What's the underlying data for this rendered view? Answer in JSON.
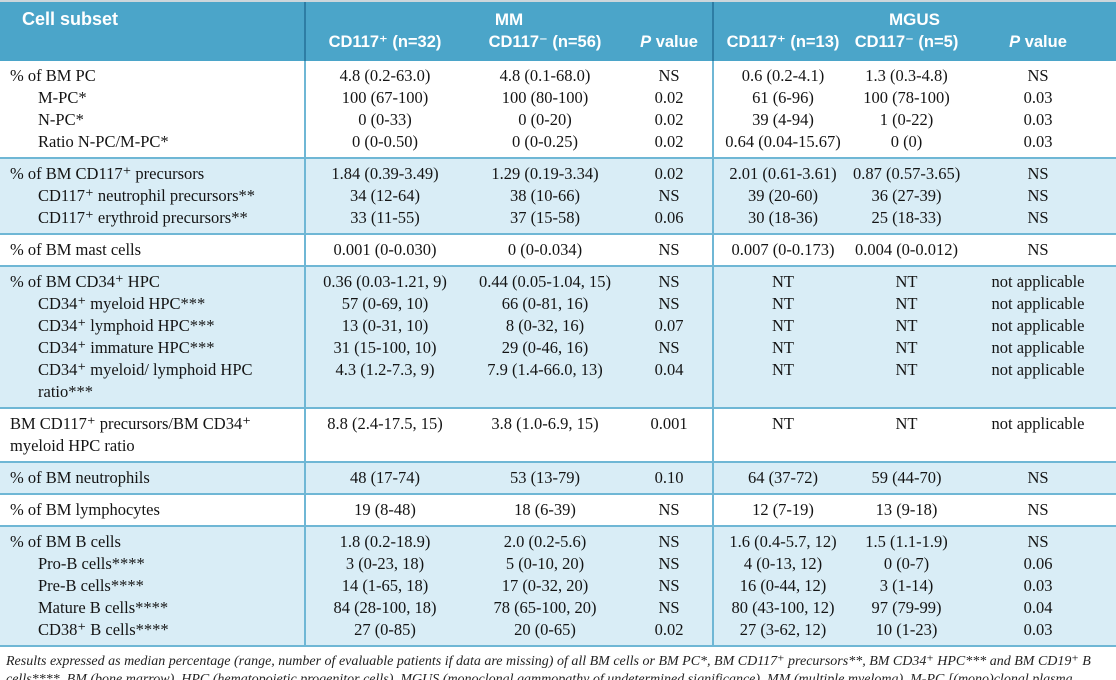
{
  "colors": {
    "header_bg": "#4ba5c9",
    "row_alt_bg": "#d9edf6",
    "body_separator": "#6fb7d5",
    "header_separator": "#2e7da4"
  },
  "header": {
    "cell_subset": "Cell subset",
    "groups": [
      {
        "label": "MM",
        "columns": [
          "CD117⁺ (n=32)",
          "CD117⁻ (n=56)",
          "P value"
        ]
      },
      {
        "label": "MGUS",
        "columns": [
          "CD117⁺ (n=13)",
          "CD117⁻ (n=5)",
          "P value"
        ]
      }
    ]
  },
  "groups": [
    {
      "bg": "white",
      "rows": [
        {
          "label": "% of BM PC",
          "indent": false,
          "values": [
            "4.8 (0.2-63.0)",
            "4.8 (0.1-68.0)",
            "NS",
            "0.6 (0.2-4.1)",
            "1.3 (0.3-4.8)",
            "NS"
          ]
        },
        {
          "label": "M-PC*",
          "indent": true,
          "values": [
            "100 (67-100)",
            "100 (80-100)",
            "0.02",
            "61 (6-96)",
            "100 (78-100)",
            "0.03"
          ]
        },
        {
          "label": "N-PC*",
          "indent": true,
          "values": [
            "0 (0-33)",
            "0 (0-20)",
            "0.02",
            "39 (4-94)",
            "1 (0-22)",
            "0.03"
          ]
        },
        {
          "label": "Ratio N-PC/M-PC*",
          "indent": true,
          "values": [
            "0 (0-0.50)",
            "0 (0-0.25)",
            "0.02",
            "0.64 (0.04-15.67)",
            "0 (0)",
            "0.03"
          ]
        }
      ]
    },
    {
      "bg": "blue",
      "rows": [
        {
          "label": "% of BM CD117⁺ precursors",
          "indent": false,
          "values": [
            "1.84 (0.39-3.49)",
            "1.29 (0.19-3.34)",
            "0.02",
            "2.01 (0.61-3.61)",
            "0.87 (0.57-3.65)",
            "NS"
          ]
        },
        {
          "label": "CD117⁺ neutrophil precursors**",
          "indent": true,
          "values": [
            "34 (12-64)",
            "38 (10-66)",
            "NS",
            "39 (20-60)",
            "36 (27-39)",
            "NS"
          ]
        },
        {
          "label": "CD117⁺ erythroid precursors**",
          "indent": true,
          "values": [
            "33 (11-55)",
            "37 (15-58)",
            "0.06",
            "30 (18-36)",
            "25 (18-33)",
            "NS"
          ]
        }
      ]
    },
    {
      "bg": "white",
      "rows": [
        {
          "label": "% of BM mast cells",
          "indent": false,
          "values": [
            "0.001 (0-0.030)",
            "0 (0-0.034)",
            "NS",
            "0.007 (0-0.173)",
            "0.004 (0-0.012)",
            "NS"
          ]
        }
      ]
    },
    {
      "bg": "blue",
      "rows": [
        {
          "label": "% of BM CD34⁺ HPC",
          "indent": false,
          "values": [
            "0.36 (0.03-1.21, 9)",
            "0.44 (0.05-1.04, 15)",
            "NS",
            "NT",
            "NT",
            "not applicable"
          ]
        },
        {
          "label": "CD34⁺ myeloid HPC***",
          "indent": true,
          "values": [
            "57 (0-69, 10)",
            "66 (0-81, 16)",
            "NS",
            "NT",
            "NT",
            "not applicable"
          ]
        },
        {
          "label": "CD34⁺ lymphoid HPC***",
          "indent": true,
          "values": [
            "13 (0-31, 10)",
            "8 (0-32, 16)",
            "0.07",
            "NT",
            "NT",
            "not applicable"
          ]
        },
        {
          "label": "CD34⁺ immature HPC***",
          "indent": true,
          "values": [
            "31 (15-100, 10)",
            "29 (0-46, 16)",
            "NS",
            "NT",
            "NT",
            "not applicable"
          ]
        },
        {
          "label": "CD34⁺ myeloid/ lymphoid HPC ratio***",
          "indent": true,
          "values": [
            "4.3 (1.2-7.3, 9)",
            "7.9 (1.4-66.0, 13)",
            "0.04",
            "NT",
            "NT",
            "not applicable"
          ]
        }
      ]
    },
    {
      "bg": "white",
      "rows": [
        {
          "label": "BM CD117⁺ precursors/BM CD34⁺",
          "label_line2": "myeloid HPC ratio",
          "indent": false,
          "values": [
            "8.8 (2.4-17.5, 15)",
            "3.8 (1.0-6.9, 15)",
            "0.001",
            "NT",
            "NT",
            "not applicable"
          ]
        }
      ]
    },
    {
      "bg": "blue",
      "rows": [
        {
          "label": "% of BM neutrophils",
          "indent": false,
          "values": [
            "48 (17-74)",
            "53 (13-79)",
            "0.10",
            "64 (37-72)",
            "59 (44-70)",
            "NS"
          ]
        }
      ]
    },
    {
      "bg": "white",
      "rows": [
        {
          "label": "% of BM lymphocytes",
          "indent": false,
          "values": [
            "19 (8-48)",
            "18 (6-39)",
            "NS",
            "12 (7-19)",
            "13 (9-18)",
            "NS"
          ]
        }
      ]
    },
    {
      "bg": "blue",
      "rows": [
        {
          "label": "% of BM B cells",
          "indent": false,
          "values": [
            "1.8 (0.2-18.9)",
            "2.0 (0.2-5.6)",
            "NS",
            "1.6 (0.4-5.7, 12)",
            "1.5 (1.1-1.9)",
            "NS"
          ]
        },
        {
          "label": "Pro-B cells****",
          "indent": true,
          "values": [
            "3 (0-23, 18)",
            "5 (0-10, 20)",
            "NS",
            "4 (0-13, 12)",
            "0 (0-7)",
            "0.06"
          ]
        },
        {
          "label": "Pre-B cells****",
          "indent": true,
          "values": [
            "14 (1-65, 18)",
            "17 (0-32, 20)",
            "NS",
            "16 (0-44, 12)",
            "3 (1-14)",
            "0.03"
          ]
        },
        {
          "label": "Mature B cells****",
          "indent": true,
          "values": [
            "84 (28-100, 18)",
            "78 (65-100, 20)",
            "NS",
            "80 (43-100, 12)",
            "97 (79-99)",
            "0.04"
          ]
        },
        {
          "label": "CD38⁺ B cells****",
          "indent": true,
          "values": [
            "27 (0-85)",
            "20 (0-65)",
            "0.02",
            "27 (3-62, 12)",
            "10 (1-23)",
            "0.03"
          ]
        }
      ]
    }
  ],
  "footnote": "Results expressed as median percentage (range, number of evaluable patients if data are missing) of all BM cells or BM PC*, BM CD117⁺ precursors**, BM CD34⁺ HPC*** and BM CD19⁺ B cells****. BM (bone marrow), HPC (hematopoietic progenitor cells), MGUS (monoclonal gammopathy of undetermined significance), MM (multiple myeloma), M-PC [(mono)clonal plasma cells], N-PC (normal plasma cells), NS (not significant), NT (not tested)."
}
